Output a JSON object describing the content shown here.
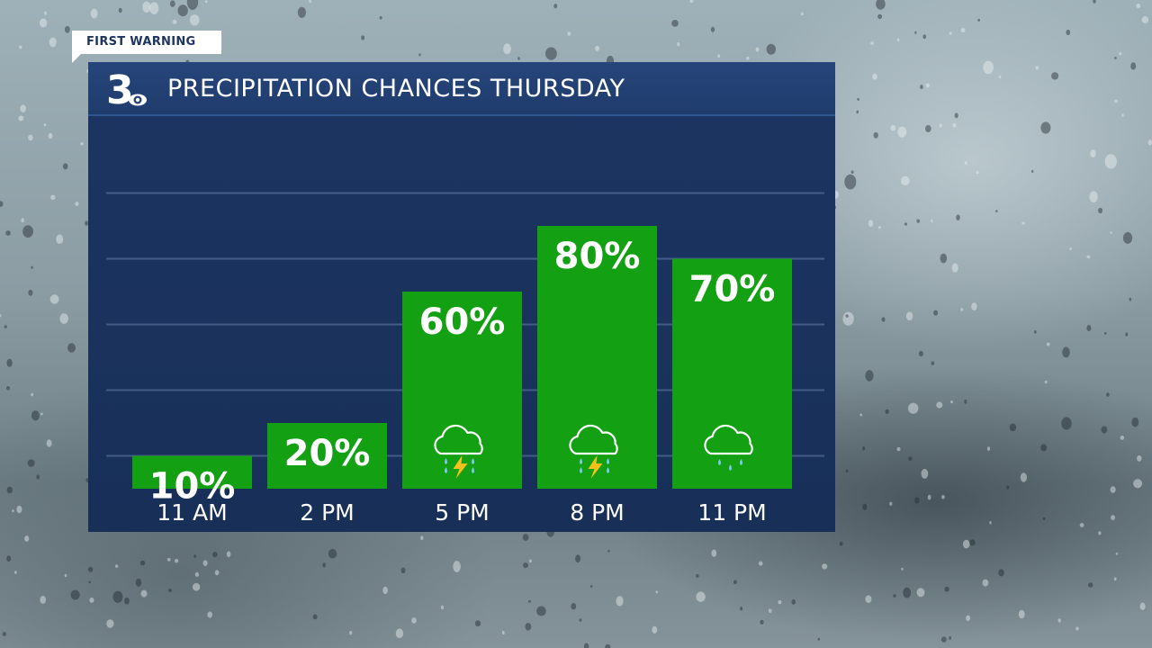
{
  "header": {
    "brand_tag": "FIRST WARNING",
    "logo_text": "3"
  },
  "chart_data": {
    "type": "bar",
    "title": "PRECIPITATION CHANCES THURSDAY",
    "categories": [
      "11 AM",
      "2 PM",
      "5 PM",
      "8 PM",
      "11 PM"
    ],
    "values": [
      10,
      20,
      60,
      80,
      70
    ],
    "value_labels": [
      "10%",
      "20%",
      "60%",
      "80%",
      "70%"
    ],
    "icons": [
      "",
      "",
      "thunderstorm-icon",
      "thunderstorm-icon",
      "rain-cloud-icon"
    ],
    "ylim": [
      0,
      100
    ],
    "grid": true,
    "bar_color": "#13a013",
    "xlabel": "",
    "ylabel": ""
  },
  "colors": {
    "panel": "#1b3461",
    "title_bar": "#234275",
    "bar": "#13a013",
    "text": "#ffffff",
    "rain_drop": "#7ec8f0",
    "lightning": "#f5c11a"
  }
}
